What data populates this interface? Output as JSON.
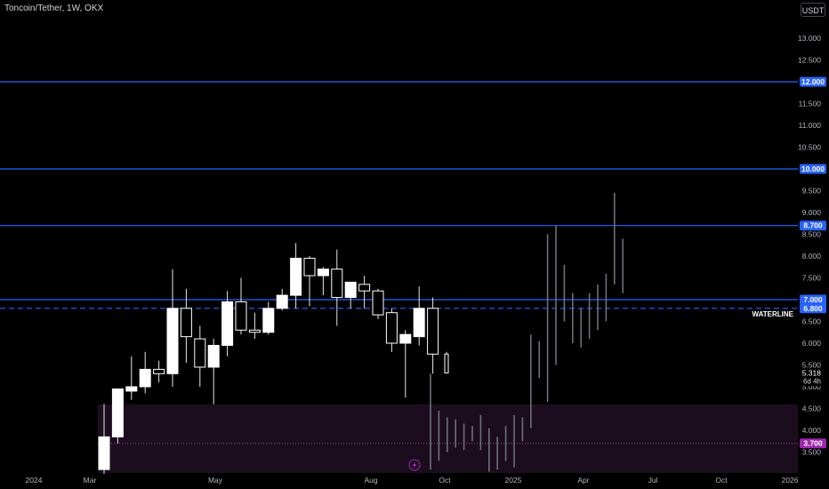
{
  "header": {
    "title": "Toncoin/Tether, 1W, OKX",
    "currency_button": "USDT"
  },
  "colors": {
    "background": "#000000",
    "level_line": "#2962ff",
    "level_tag": "#2962ff",
    "zone_fill": "#1c0d1e",
    "zone_dotted": "#8b4f9a",
    "zone_tag": "#9c27b0",
    "candle_body": "#ffffff",
    "projection_wick": "#6b6f78"
  },
  "chart_data": {
    "type": "candlestick",
    "y_axis": {
      "min": 3.1,
      "max": 13.5,
      "tick_labels": [
        "13.000",
        "12.500",
        "11.500",
        "11.000",
        "10.500",
        "9.500",
        "9.000",
        "8.500",
        "8.000",
        "7.500",
        "6.500",
        "6.000",
        "5.500",
        "5.000",
        "4.500",
        "4.000",
        "3.500"
      ]
    },
    "x_axis": {
      "tick_labels": [
        "2024",
        "Mar",
        "May",
        "Aug",
        "Oct",
        "2025",
        "Apr",
        "Jul",
        "Oct",
        "2026"
      ]
    },
    "levels": [
      {
        "label": "12.000",
        "value": 12.0,
        "style": "solid"
      },
      {
        "label": "10.000",
        "value": 10.0,
        "style": "solid"
      },
      {
        "label": "8.700",
        "value": 8.7,
        "style": "solid"
      },
      {
        "label": "7.000",
        "value": 7.0,
        "style": "solid"
      },
      {
        "label": "6.800",
        "value": 6.8,
        "style": "dashed",
        "annotation": "WATERLINE"
      }
    ],
    "zone": {
      "label": "3.700",
      "top": 4.6,
      "mid": 3.7,
      "bottom": 3.1
    },
    "current_price": {
      "value": "5.318",
      "countdown": "6d 4h"
    },
    "candles": [
      {
        "o": 3.1,
        "h": 4.6,
        "l": 3.0,
        "c": 3.85
      },
      {
        "o": 3.85,
        "h": 4.9,
        "l": 3.7,
        "c": 4.95
      },
      {
        "o": 4.9,
        "h": 5.7,
        "l": 4.7,
        "c": 5.0
      },
      {
        "o": 5.0,
        "h": 5.8,
        "l": 4.85,
        "c": 5.4
      },
      {
        "o": 5.4,
        "h": 5.6,
        "l": 5.1,
        "c": 5.3
      },
      {
        "o": 5.3,
        "h": 7.7,
        "l": 5.0,
        "c": 6.8
      },
      {
        "o": 6.8,
        "h": 7.25,
        "l": 5.55,
        "c": 6.15
      },
      {
        "o": 6.1,
        "h": 6.4,
        "l": 5.0,
        "c": 5.45
      },
      {
        "o": 5.45,
        "h": 6.1,
        "l": 4.6,
        "c": 5.95
      },
      {
        "o": 5.95,
        "h": 7.2,
        "l": 5.7,
        "c": 6.95
      },
      {
        "o": 6.95,
        "h": 7.5,
        "l": 6.2,
        "c": 6.3
      },
      {
        "o": 6.3,
        "h": 6.7,
        "l": 6.1,
        "c": 6.25
      },
      {
        "o": 6.25,
        "h": 6.95,
        "l": 6.2,
        "c": 6.8
      },
      {
        "o": 6.8,
        "h": 7.25,
        "l": 6.75,
        "c": 7.1
      },
      {
        "o": 7.1,
        "h": 8.3,
        "l": 6.8,
        "c": 7.95
      },
      {
        "o": 7.95,
        "h": 8.0,
        "l": 6.85,
        "c": 7.55
      },
      {
        "o": 7.55,
        "h": 7.75,
        "l": 7.1,
        "c": 7.7
      },
      {
        "o": 7.7,
        "h": 8.15,
        "l": 6.4,
        "c": 7.05
      },
      {
        "o": 7.05,
        "h": 7.4,
        "l": 6.8,
        "c": 7.4
      },
      {
        "o": 7.35,
        "h": 7.55,
        "l": 6.8,
        "c": 7.2
      },
      {
        "o": 7.2,
        "h": 7.25,
        "l": 6.55,
        "c": 6.65
      },
      {
        "o": 6.7,
        "h": 6.8,
        "l": 5.8,
        "c": 6.0
      },
      {
        "o": 6.0,
        "h": 6.3,
        "l": 4.75,
        "c": 6.2
      },
      {
        "o": 6.15,
        "h": 7.3,
        "l": 5.95,
        "c": 6.8
      },
      {
        "o": 6.8,
        "h": 7.05,
        "l": 5.3,
        "c": 5.75
      },
      {
        "o": 5.75,
        "h": 5.8,
        "l": 5.35,
        "c": 5.318
      }
    ],
    "projection_wicks": [
      {
        "h": 5.3,
        "l": 3.1
      },
      {
        "h": 4.45,
        "l": 3.3
      },
      {
        "h": 4.3,
        "l": 3.5
      },
      {
        "h": 4.25,
        "l": 3.6
      },
      {
        "h": 4.15,
        "l": 3.55
      },
      {
        "h": 4.1,
        "l": 3.75
      },
      {
        "h": 4.35,
        "l": 3.55
      },
      {
        "h": 4.05,
        "l": 3.05
      },
      {
        "h": 3.85,
        "l": 3.1
      },
      {
        "h": 4.1,
        "l": 3.3
      },
      {
        "h": 4.35,
        "l": 3.15
      },
      {
        "h": 4.3,
        "l": 3.75
      },
      {
        "h": 6.2,
        "l": 4.05
      },
      {
        "h": 6.05,
        "l": 5.2
      },
      {
        "h": 8.5,
        "l": 4.65
      },
      {
        "h": 8.7,
        "l": 5.5
      },
      {
        "h": 7.8,
        "l": 6.5
      },
      {
        "h": 7.15,
        "l": 6.0
      },
      {
        "h": 6.8,
        "l": 5.9
      },
      {
        "h": 7.15,
        "l": 6.1
      },
      {
        "h": 7.35,
        "l": 6.3
      },
      {
        "h": 7.6,
        "l": 6.5
      },
      {
        "h": 9.45,
        "l": 7.35
      },
      {
        "h": 8.4,
        "l": 7.15
      }
    ]
  }
}
